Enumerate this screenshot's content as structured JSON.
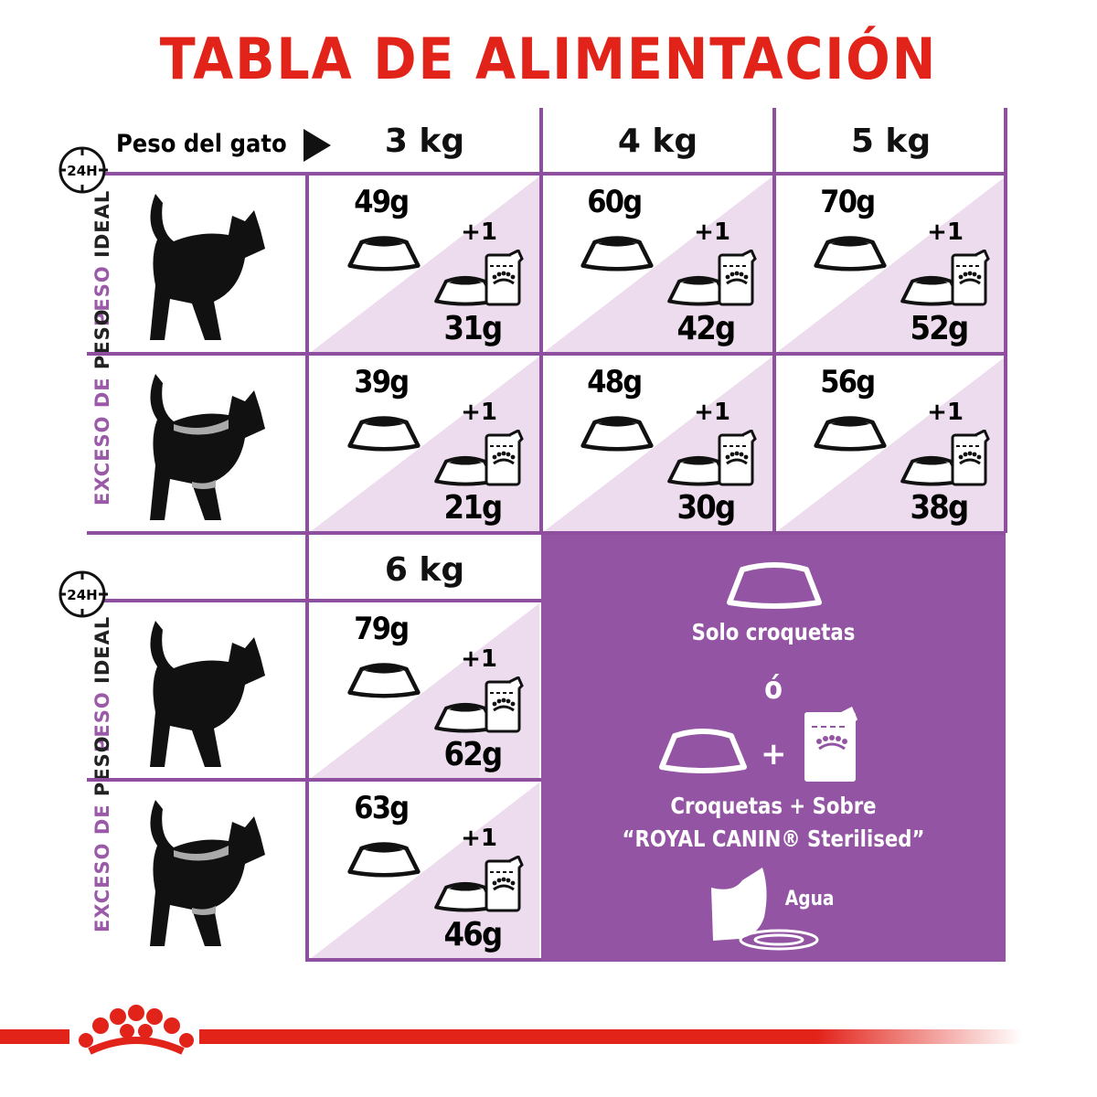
{
  "title": "TABLA DE ALIMENTACIÓN",
  "weight_label": "Peso del gato",
  "clock_label": "24H",
  "row_labels": {
    "ideal": {
      "purple": "PESO",
      "dark": "IDEAL"
    },
    "exceso": {
      "purple": "EXCESO DE",
      "dark": "PESO"
    }
  },
  "table1": {
    "columns": [
      "3 kg",
      "4 kg",
      "5 kg"
    ],
    "rows": [
      {
        "type": "ideal",
        "cells": [
          {
            "dry": "49g",
            "mixed": "31g",
            "pouch": "+1"
          },
          {
            "dry": "60g",
            "mixed": "42g",
            "pouch": "+1"
          },
          {
            "dry": "70g",
            "mixed": "52g",
            "pouch": "+1"
          }
        ]
      },
      {
        "type": "exceso",
        "cells": [
          {
            "dry": "39g",
            "mixed": "21g",
            "pouch": "+1"
          },
          {
            "dry": "48g",
            "mixed": "30g",
            "pouch": "+1"
          },
          {
            "dry": "56g",
            "mixed": "38g",
            "pouch": "+1"
          }
        ]
      }
    ]
  },
  "table2": {
    "columns": [
      "6 kg"
    ],
    "rows": [
      {
        "type": "ideal",
        "cells": [
          {
            "dry": "79g",
            "mixed": "62g",
            "pouch": "+1"
          }
        ]
      },
      {
        "type": "exceso",
        "cells": [
          {
            "dry": "63g",
            "mixed": "46g",
            "pouch": "+1"
          }
        ]
      }
    ]
  },
  "legend": {
    "solo": "Solo croquetas",
    "or": "ó",
    "plus": "+",
    "combo_line1": "Croquetas + Sobre",
    "combo_line2": "“ROYAL CANIN® Sterilised”",
    "water": "Agua"
  },
  "colors": {
    "brand_red": "#e2231a",
    "grid_purple": "#8e4f9f",
    "panel_purple": "#9355a3",
    "cell_tint": "#ecdced"
  }
}
